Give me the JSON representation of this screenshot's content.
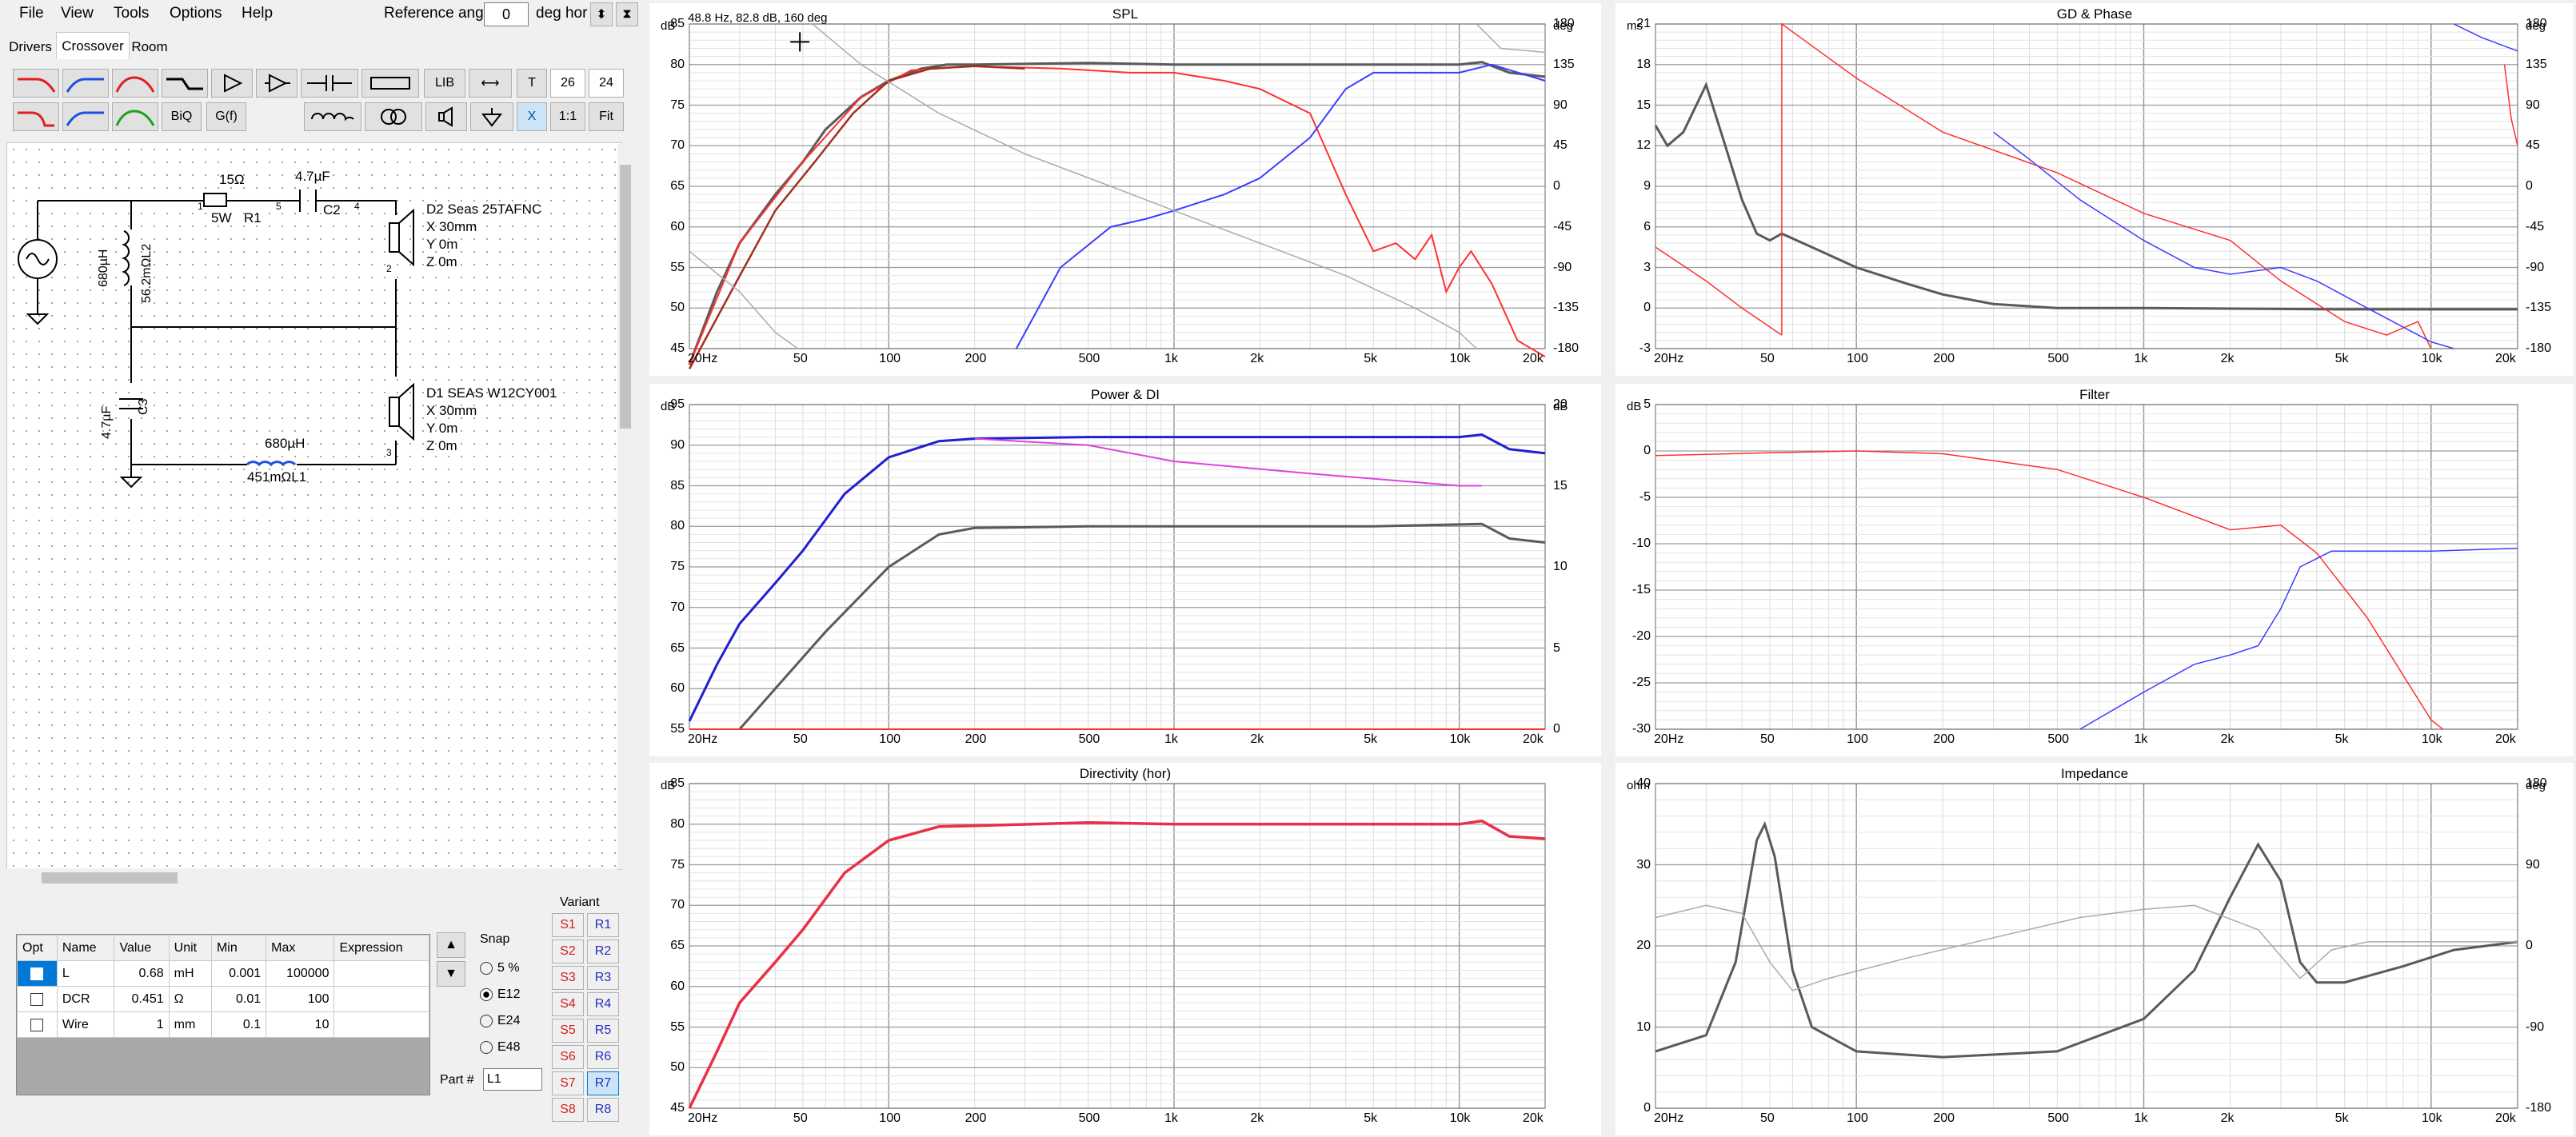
{
  "menu": {
    "file": "File",
    "view": "View",
    "tools": "Tools",
    "options": "Options",
    "help": "Help"
  },
  "reference": {
    "label": "Reference angle",
    "value": "0",
    "unit": "deg hor"
  },
  "tabs": {
    "drivers": "Drivers",
    "crossover": "Crossover",
    "room": "Room"
  },
  "toolbar": {
    "biq": "BiQ",
    "gf": "G(f)",
    "lib": "LIB",
    "t": "T",
    "n26": "26",
    "n24": "24",
    "x": "X",
    "ratio": "1:1",
    "fit": "Fit"
  },
  "schematic": {
    "r1_value": "15Ω",
    "r1_power": "5W",
    "r1_name": "R1",
    "c2_value": "4.7µF",
    "c2_name": "C2",
    "l2_value": "680µH",
    "l2_dcr": "56.2mΩL2",
    "c3_value": "4.7µF",
    "c3_name": "C3",
    "l1_value": "680µH",
    "l1_label": "451mΩL1",
    "d2_name": "D2 Seas 25TAFNC",
    "d2_x": "X 30mm",
    "d2_y": "Y 0m",
    "d2_z": "Z 0m",
    "d1_name": "D1 SEAS W12CY001",
    "d1_x": "X 30mm",
    "d1_y": "Y 0m",
    "d1_z": "Z 0m",
    "nodes": [
      "1",
      "5",
      "4",
      "1",
      "2",
      "1",
      "2",
      "3",
      "4",
      "6",
      "3"
    ]
  },
  "parts_table": {
    "headers": [
      "Opt",
      "Name",
      "Value",
      "Unit",
      "Min",
      "Max",
      "Expression"
    ],
    "rows": [
      {
        "name": "L",
        "value": "0.68",
        "unit": "mH",
        "min": "0.001",
        "max": "100000"
      },
      {
        "name": "DCR",
        "value": "0.451",
        "unit": "Ω",
        "min": "0.01",
        "max": "100"
      },
      {
        "name": "Wire",
        "value": "1",
        "unit": "mm",
        "min": "0.1",
        "max": "10"
      }
    ]
  },
  "snap": {
    "title": "Snap",
    "options": [
      "5 %",
      "E12",
      "E24",
      "E48"
    ],
    "selected": "E12"
  },
  "part_no": {
    "label": "Part #",
    "value": "L1"
  },
  "variant": {
    "title": "Variant",
    "s": [
      "S1",
      "S2",
      "S3",
      "S4",
      "S5",
      "S6",
      "S7",
      "S8"
    ],
    "r": [
      "R1",
      "R2",
      "R3",
      "R4",
      "R5",
      "R6",
      "R7",
      "R8"
    ]
  },
  "xticks": [
    "20Hz",
    "50",
    "100",
    "200",
    "500",
    "1k",
    "2k",
    "5k",
    "10k",
    "20k"
  ],
  "charts": {
    "spl": {
      "title": "SPL",
      "left_unit": "dB",
      "right_unit": "deg",
      "left": [
        "85",
        "80",
        "75",
        "70",
        "65",
        "60",
        "55",
        "50",
        "45"
      ],
      "right": [
        "180",
        "135",
        "90",
        "45",
        "0",
        "-45",
        "-90",
        "-135",
        "-180"
      ],
      "cursor": "48.8 Hz, 82.8 dB, 160 deg"
    },
    "gd": {
      "title": "GD & Phase",
      "left_unit": "ms",
      "right_unit": "deg",
      "left": [
        "21",
        "18",
        "15",
        "12",
        "9",
        "6",
        "3",
        "0",
        "-3"
      ],
      "right": [
        "180",
        "135",
        "90",
        "45",
        "0",
        "-45",
        "-90",
        "-135",
        "-180"
      ]
    },
    "power": {
      "title": "Power & DI",
      "left_unit": "dB",
      "right_unit": "dB",
      "left": [
        "95",
        "90",
        "85",
        "80",
        "75",
        "70",
        "65",
        "60",
        "55"
      ],
      "right": [
        "20",
        "15",
        "10",
        "5",
        "0"
      ]
    },
    "filter": {
      "title": "Filter",
      "left_unit": "dB",
      "left": [
        "5",
        "0",
        "-5",
        "-10",
        "-15",
        "-20",
        "-25",
        "-30"
      ]
    },
    "dir": {
      "title": "Directivity (hor)",
      "left_unit": "dB",
      "left": [
        "85",
        "80",
        "75",
        "70",
        "65",
        "60",
        "55",
        "50",
        "45"
      ]
    },
    "imp": {
      "title": "Impedance",
      "left_unit": "ohm",
      "right_unit": "deg",
      "left": [
        "40",
        "30",
        "20",
        "10",
        "0"
      ],
      "right": [
        "180",
        "90",
        "0",
        "-90",
        "-180"
      ]
    }
  },
  "colors": {
    "red": "#ff3030",
    "blue": "#3c3cff",
    "gray": "#5a5a5a",
    "light": "#aaaaaa",
    "magenta": "#e040e0",
    "dkred": "#a03020"
  }
}
